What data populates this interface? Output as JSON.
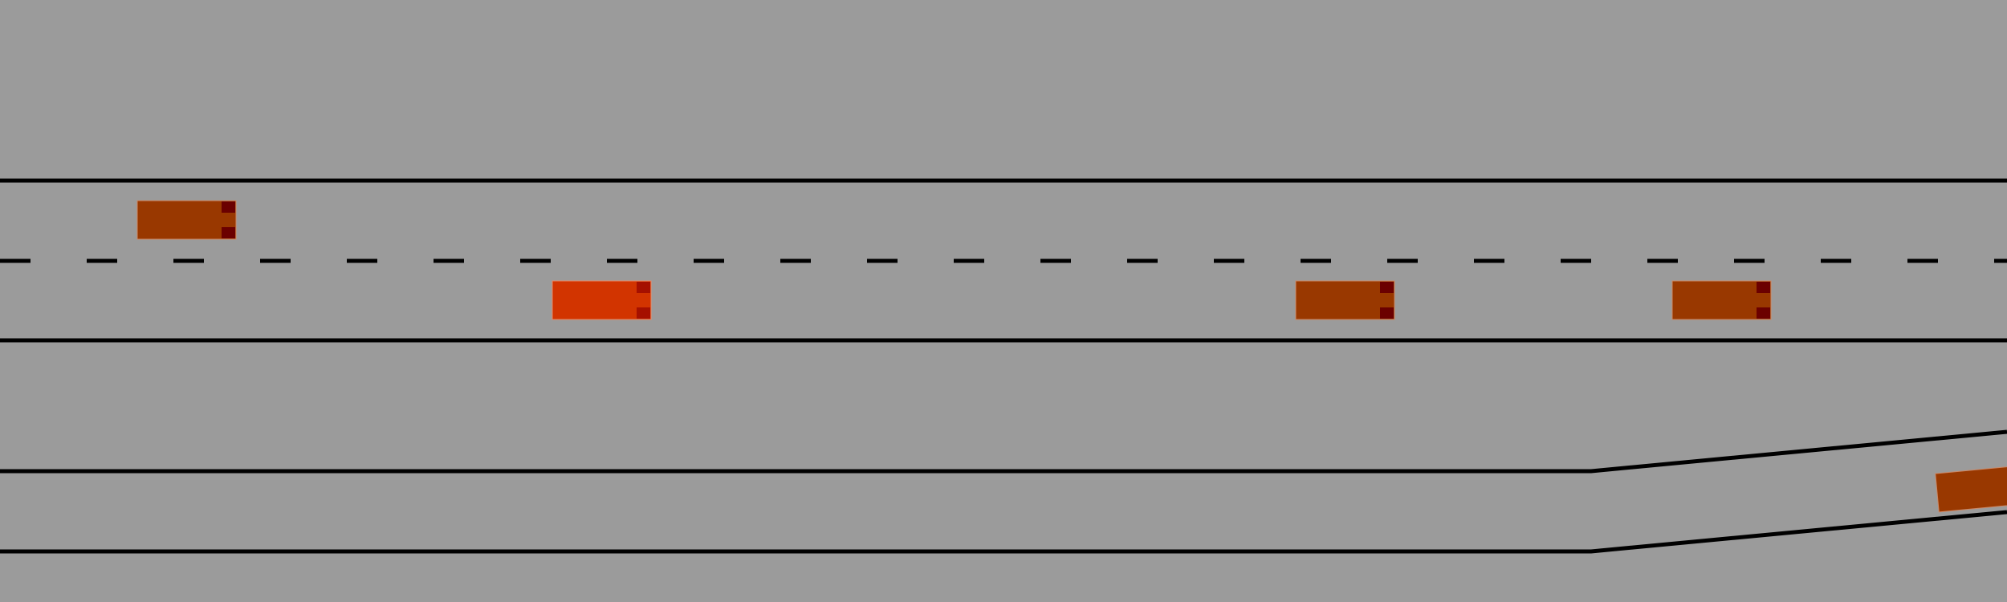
{
  "scene": {
    "background_color": "#9b9b9b",
    "lane_line_color": "#000000"
  },
  "vehicles": [
    {
      "id": "vehicle-1",
      "role": "other",
      "body_color": "#993800",
      "light_color": "#6b0000"
    },
    {
      "id": "vehicle-ego",
      "role": "ego",
      "body_color": "#d23400",
      "light_color": "#a51000"
    },
    {
      "id": "vehicle-2",
      "role": "other",
      "body_color": "#993800",
      "light_color": "#6b0000"
    },
    {
      "id": "vehicle-3",
      "role": "other",
      "body_color": "#993800",
      "light_color": "#6b0000"
    },
    {
      "id": "vehicle-merge",
      "role": "other",
      "body_color": "#993800",
      "light_color": "#6b0000"
    }
  ]
}
